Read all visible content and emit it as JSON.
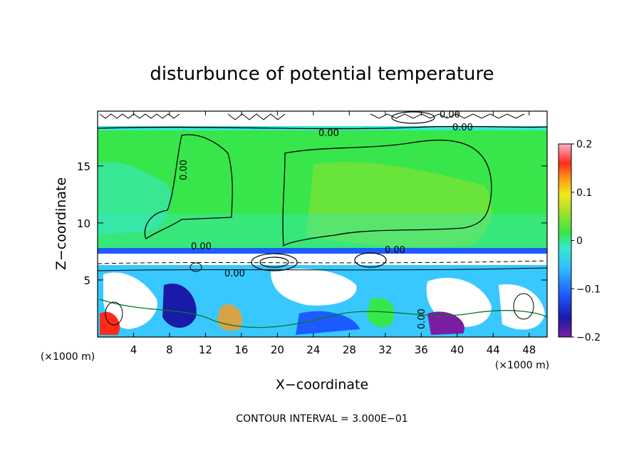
{
  "chart_data": {
    "type": "heatmap",
    "title": "disturbunce of potential temperature",
    "xlabel": "X−coordinate",
    "ylabel": "Z−coordinate",
    "x_unit_left": "(×1000 m)",
    "x_unit_right": "(×1000 m)",
    "x_ticks": [
      4,
      8,
      12,
      16,
      20,
      24,
      28,
      32,
      36,
      40,
      44,
      48
    ],
    "y_ticks": [
      5,
      10,
      15
    ],
    "xlim": [
      0,
      50
    ],
    "ylim": [
      0,
      19.8
    ],
    "colorbar": {
      "vmin": -0.2,
      "vmax": 0.2,
      "tick_values": [
        0.2,
        0.1,
        0,
        -0.1,
        -0.2
      ],
      "tick_labels": [
        "0.2",
        "0.1",
        "0",
        "−0.1",
        "−0.2"
      ]
    },
    "contour_labels": [
      "0.00",
      "0.00",
      "0.00",
      "0.00",
      "0.00",
      "0.00",
      "0.00",
      "0.00"
    ],
    "footer": "CONTOUR INTERVAL = 3.000E−01"
  }
}
